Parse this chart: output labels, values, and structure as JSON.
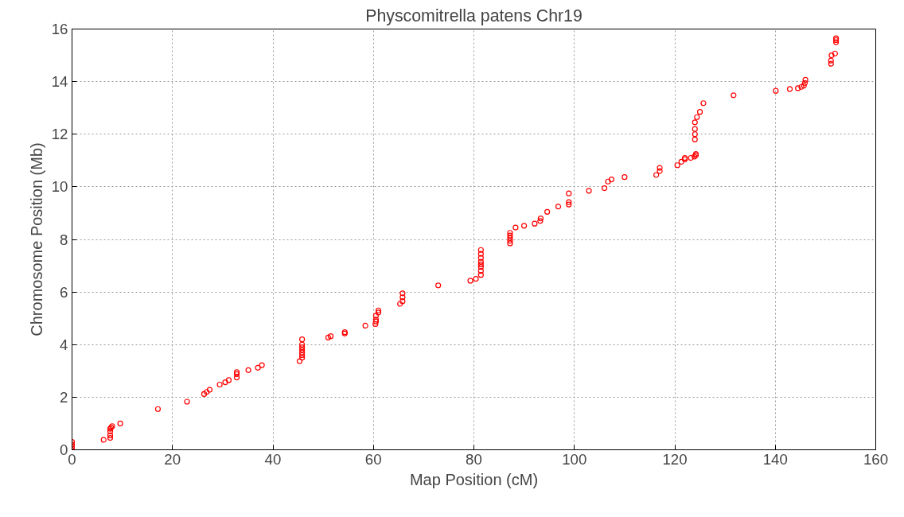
{
  "chart_data": {
    "type": "scatter",
    "title": "Physcomitrella patens Chr19",
    "xlabel": "Map Position (cM)",
    "ylabel": "Chromosome Position (Mb)",
    "xlim": [
      0,
      160
    ],
    "ylim": [
      0,
      16
    ],
    "xticks": [
      0,
      20,
      40,
      60,
      80,
      100,
      120,
      140,
      160
    ],
    "yticks": [
      0,
      2,
      4,
      6,
      8,
      10,
      12,
      14,
      16
    ],
    "grid": true,
    "marker": "circle",
    "series": [
      {
        "color": "#ff0000",
        "x": [
          0,
          0,
          0,
          0,
          6.3,
          7.6,
          7.6,
          7.6,
          7.6,
          7.8,
          8.0,
          9.6,
          17.1,
          22.9,
          26.3,
          26.8,
          27.4,
          29.4,
          30.5,
          31.2,
          32.8,
          32.8,
          32.8,
          35.1,
          37.0,
          37.8,
          45.3,
          45.8,
          45.8,
          45.8,
          45.8,
          45.8,
          45.8,
          45.8,
          51.0,
          51.5,
          54.3,
          54.3,
          58.4,
          60.4,
          60.5,
          60.5,
          60.5,
          61.0,
          61.0,
          65.3,
          65.8,
          65.8,
          65.8,
          72.9,
          79.3,
          80.4,
          81.4,
          81.4,
          81.4,
          81.4,
          81.4,
          81.4,
          81.4,
          81.4,
          87.2,
          87.2,
          87.2,
          87.2,
          87.2,
          88.3,
          90.0,
          92.1,
          93.2,
          93.3,
          94.6,
          96.8,
          98.9,
          98.9,
          98.9,
          102.9,
          106.0,
          106.7,
          107.4,
          110.0,
          116.3,
          117.0,
          117.0,
          120.5,
          121.3,
          122.0,
          122.0,
          123.2,
          123.9,
          124.2,
          124.2,
          124.0,
          124.0,
          124.0,
          124.0,
          124.4,
          125.0,
          125.7,
          131.7,
          140.1,
          142.9,
          144.5,
          145.2,
          145.7,
          145.9,
          146.0,
          151.1,
          151.1,
          151.2,
          151.9,
          152.1,
          152.1,
          152.1
        ],
        "values": [
          0.0,
          0.1,
          0.2,
          0.3,
          0.38,
          0.45,
          0.55,
          0.7,
          0.8,
          0.85,
          0.9,
          1.0,
          1.55,
          1.83,
          2.12,
          2.2,
          2.28,
          2.48,
          2.57,
          2.65,
          2.75,
          2.88,
          2.95,
          3.03,
          3.12,
          3.22,
          3.37,
          3.5,
          3.6,
          3.7,
          3.8,
          3.9,
          4.0,
          4.2,
          4.27,
          4.32,
          4.42,
          4.47,
          4.72,
          4.78,
          4.88,
          4.95,
          5.1,
          5.22,
          5.3,
          5.55,
          5.65,
          5.8,
          5.95,
          6.25,
          6.43,
          6.5,
          6.65,
          6.8,
          6.95,
          7.05,
          7.15,
          7.3,
          7.45,
          7.6,
          7.85,
          7.95,
          8.05,
          8.15,
          8.25,
          8.45,
          8.52,
          8.6,
          8.7,
          8.8,
          9.05,
          9.25,
          9.33,
          9.42,
          9.75,
          9.85,
          9.95,
          10.2,
          10.28,
          10.37,
          10.45,
          10.6,
          10.72,
          10.82,
          10.95,
          11.05,
          11.1,
          11.1,
          11.15,
          11.2,
          11.25,
          11.8,
          12.0,
          12.2,
          12.45,
          12.65,
          12.85,
          13.18,
          13.48,
          13.65,
          13.72,
          13.75,
          13.8,
          13.85,
          13.95,
          14.07,
          14.68,
          14.8,
          15.0,
          15.07,
          15.5,
          15.58,
          15.65
        ]
      }
    ]
  }
}
